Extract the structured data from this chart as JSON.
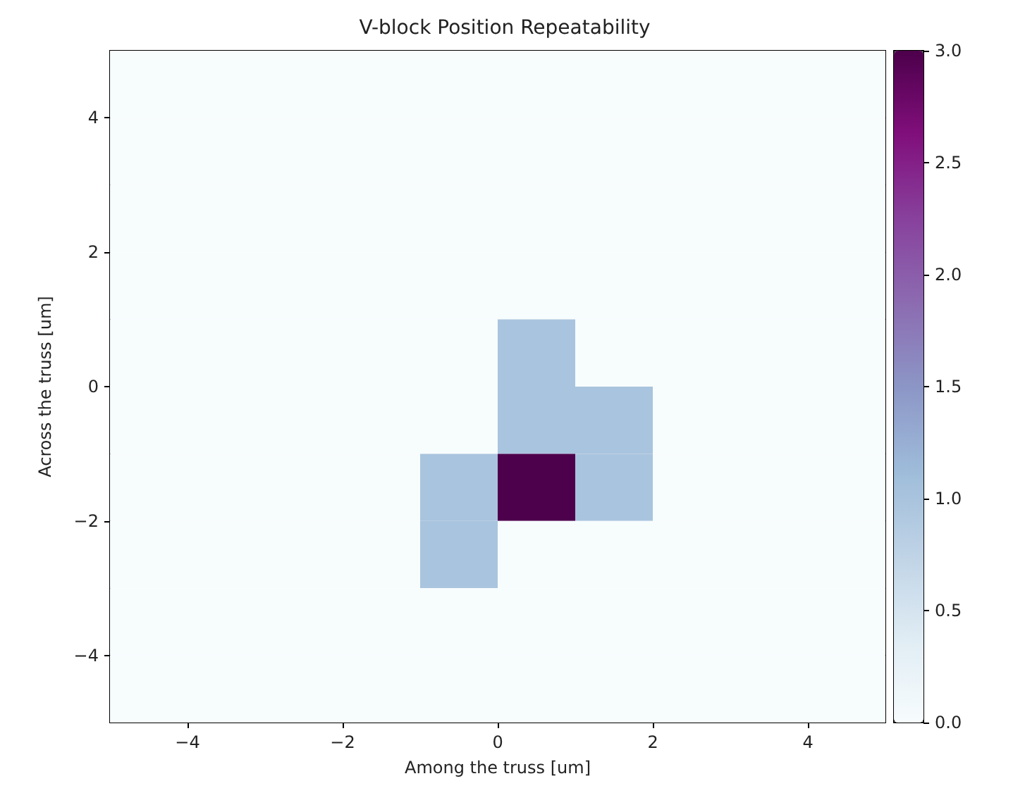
{
  "chart_data": {
    "type": "heatmap",
    "title": "V-block Position Repeatability",
    "xlabel": "Among the truss [um]",
    "ylabel": "Across the truss [um]",
    "cells": [
      [
        0,
        0,
        0,
        0,
        0,
        0,
        0,
        0,
        0,
        0
      ],
      [
        0,
        0,
        0,
        0,
        0,
        0,
        0,
        0,
        0,
        0
      ],
      [
        0,
        0,
        0,
        0,
        0,
        0,
        0,
        0,
        0,
        0
      ],
      [
        0,
        0,
        0,
        0,
        0,
        0,
        0,
        0,
        0,
        0
      ],
      [
        0,
        0,
        0,
        0,
        0,
        1,
        0,
        0,
        0,
        0
      ],
      [
        0,
        0,
        0,
        0,
        0,
        1,
        1,
        0,
        0,
        0
      ],
      [
        0,
        0,
        0,
        0,
        1,
        3,
        1,
        0,
        0,
        0
      ],
      [
        0,
        0,
        0,
        0,
        1,
        0,
        0,
        0,
        0,
        0
      ],
      [
        0,
        0,
        0,
        0,
        0,
        0,
        0,
        0,
        0,
        0
      ],
      [
        0,
        0,
        0,
        0,
        0,
        0,
        0,
        0,
        0,
        0
      ]
    ],
    "xlim": [
      -5,
      5
    ],
    "ylim": [
      -5,
      5
    ],
    "xticks": [
      {
        "value": -4,
        "label": "−4"
      },
      {
        "value": -2,
        "label": "−2"
      },
      0,
      2,
      4
    ],
    "yticks": [
      {
        "value": -4,
        "label": "−4"
      },
      {
        "value": -2,
        "label": "−2"
      },
      0,
      2,
      4
    ],
    "clim": [
      0,
      3
    ],
    "cticks": [
      {
        "value": 0,
        "label": "0.0"
      },
      {
        "value": 0.5,
        "label": "0.5"
      },
      {
        "value": 1,
        "label": "1.0"
      },
      {
        "value": 1.5,
        "label": "1.5"
      },
      {
        "value": 2,
        "label": "2.0"
      },
      {
        "value": 2.5,
        "label": "2.5"
      },
      {
        "value": 3,
        "label": "3.0"
      }
    ]
  }
}
